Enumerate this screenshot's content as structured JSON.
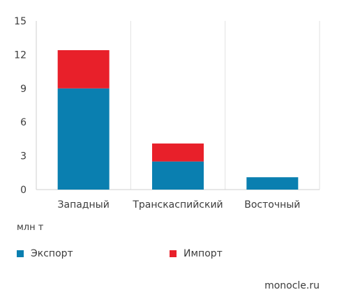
{
  "chart_data": {
    "type": "bar",
    "stacked": true,
    "categories": [
      "Западный",
      "Транскаспийский",
      "Восточный"
    ],
    "series": [
      {
        "name": "Экспорт",
        "color": "#0a7fb0",
        "values": [
          9.0,
          2.5,
          1.1
        ]
      },
      {
        "name": "Импорт",
        "color": "#e8202a",
        "values": [
          3.4,
          1.6,
          0
        ]
      }
    ],
    "ylim": [
      0,
      15
    ],
    "yticks": [
      0,
      3,
      6,
      9,
      12,
      15
    ],
    "ylabel": "млн т",
    "grid": "vertical separators",
    "legend": "bottom"
  },
  "unit_label": "млн т",
  "legend": {
    "export_label": "Экспорт",
    "import_label": "Импорт",
    "export_color": "#0a7fb0",
    "import_color": "#e8202a"
  },
  "source": "monocle.ru"
}
